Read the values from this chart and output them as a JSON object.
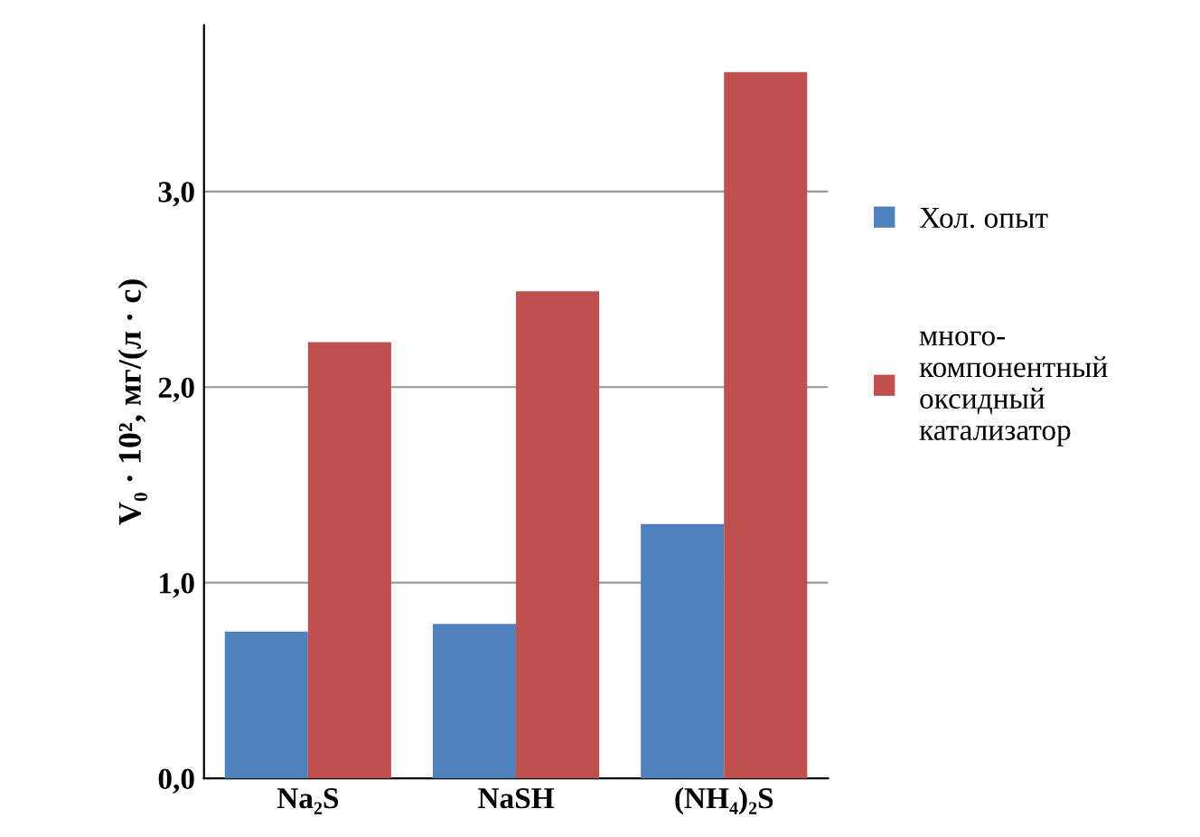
{
  "chart_data": {
    "type": "bar",
    "ylabel": "V₀ · 10², мг/(л · с)",
    "categories": [
      "Na₂S",
      "NaSH",
      "(NH₄)₂S"
    ],
    "series": [
      {
        "name": "Хол. опыт",
        "color": "#4f81bd",
        "values": [
          0.75,
          0.79,
          1.3
        ]
      },
      {
        "name": "много-\nкомпонентный\nоксидный\nкатализатор",
        "color": "#c0504d",
        "values": [
          2.23,
          2.49,
          3.61
        ]
      }
    ],
    "ylim": [
      0,
      3.85
    ],
    "yticks": [
      {
        "value": 0,
        "label": "0,0"
      },
      {
        "value": 1,
        "label": "1,0"
      },
      {
        "value": 2,
        "label": "2,0"
      },
      {
        "value": 3,
        "label": "3,0"
      }
    ],
    "grid": "y",
    "legend": "right"
  }
}
